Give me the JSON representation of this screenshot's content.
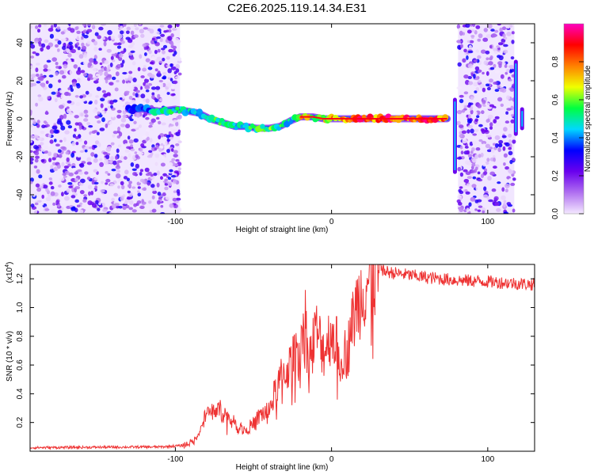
{
  "title": "C2E6.2025.119.14.34.E31",
  "chart_data": [
    {
      "type": "heatmap",
      "name": "spectrogram",
      "xlabel": "Height of straight line (km)",
      "ylabel": "Frequency (Hz)",
      "xlim": [
        -193,
        130
      ],
      "ylim": [
        -50,
        50
      ],
      "x_ticks": [
        -100,
        0,
        100
      ],
      "x_tick_labels": [
        "-100",
        "0",
        "100"
      ],
      "y_ticks": [
        -40,
        -20,
        0,
        20,
        40
      ],
      "y_tick_labels": [
        "-40",
        "-20",
        "0",
        "20",
        "40"
      ],
      "colorbar": {
        "label": "Normalized spectral amplitude",
        "range": [
          0,
          1
        ],
        "ticks": [
          0.0,
          0.2,
          0.4,
          0.6,
          0.8
        ],
        "tick_labels": [
          "0.0",
          "0.2",
          "0.4",
          "0.6",
          "0.8"
        ],
        "colors": [
          "#f4e8ff",
          "#b070f0",
          "#6a00ee",
          "#0000ff",
          "#00d8ff",
          "#00ff40",
          "#f0ff00",
          "#ff8000",
          "#ff0000",
          "#ff00c0"
        ]
      },
      "noise_regions": [
        {
          "x_range": [
            -193,
            -97
          ],
          "amplitude": 0.22
        },
        {
          "x_range": [
            81,
            117
          ],
          "amplitude": 0.22
        }
      ],
      "signal_track": {
        "x": [
          -130,
          -120,
          -110,
          -100,
          -92,
          -85,
          -78,
          -70,
          -62,
          -55,
          -48,
          -40,
          -33,
          -26,
          -20,
          -12,
          -5,
          0,
          10,
          20,
          40,
          60,
          74
        ],
        "frequency": [
          5,
          5,
          4,
          5,
          4,
          3,
          0,
          -2,
          -4,
          -4,
          -5,
          -5,
          -4,
          -1,
          1,
          1,
          0,
          0,
          0,
          0,
          0,
          0,
          0
        ],
        "amplitude": [
          0.35,
          0.4,
          0.5,
          0.55,
          0.5,
          0.5,
          0.55,
          0.55,
          0.5,
          0.55,
          0.6,
          0.6,
          0.55,
          0.5,
          0.75,
          0.7,
          0.75,
          0.8,
          0.85,
          0.9,
          0.9,
          0.9,
          0.85
        ]
      },
      "spikes": [
        {
          "x": 79,
          "f_range": [
            -28,
            10
          ]
        },
        {
          "x": 118,
          "f_range": [
            -8,
            30
          ]
        },
        {
          "x": 122,
          "f_range": [
            -5,
            5
          ]
        }
      ]
    },
    {
      "type": "line",
      "name": "snr",
      "xlabel": "Height of straight line (km)",
      "ylabel": "SNR (10 * v/v)",
      "y_multiplier": "(x10",
      "y_multiplier_exp": "4",
      "y_multiplier_close": ")",
      "xlim": [
        -193,
        130
      ],
      "ylim": [
        0,
        13000
      ],
      "x_ticks": [
        -100,
        0,
        100
      ],
      "x_tick_labels": [
        "-100",
        "0",
        "100"
      ],
      "y_ticks": [
        2000,
        4000,
        6000,
        8000,
        10000,
        12000
      ],
      "y_tick_labels": [
        "0.2",
        "0.4",
        "0.6",
        "0.8",
        "1.0",
        "1.2"
      ],
      "color": "#ee3333",
      "series": [
        {
          "x": [
            -193,
            -150,
            -110,
            -95,
            -88,
            -84,
            -80,
            -75,
            -70,
            -65,
            -60,
            -55,
            -50,
            -45,
            -40,
            -37,
            -35,
            -30,
            -25,
            -20,
            -17,
            -15,
            -10,
            -5,
            0,
            5,
            10,
            15,
            20,
            25,
            30,
            40,
            60,
            80,
            100,
            115,
            130
          ],
          "y": [
            250,
            280,
            300,
            400,
            700,
            1500,
            2600,
            2900,
            2800,
            2200,
            1700,
            1500,
            1900,
            2600,
            2800,
            3800,
            4600,
            5500,
            6200,
            7700,
            9500,
            6200,
            8400,
            7000,
            8400,
            6900,
            6800,
            9800,
            11300,
            12200,
            12600,
            12400,
            12100,
            11900,
            11800,
            11700,
            11600
          ]
        }
      ]
    }
  ]
}
